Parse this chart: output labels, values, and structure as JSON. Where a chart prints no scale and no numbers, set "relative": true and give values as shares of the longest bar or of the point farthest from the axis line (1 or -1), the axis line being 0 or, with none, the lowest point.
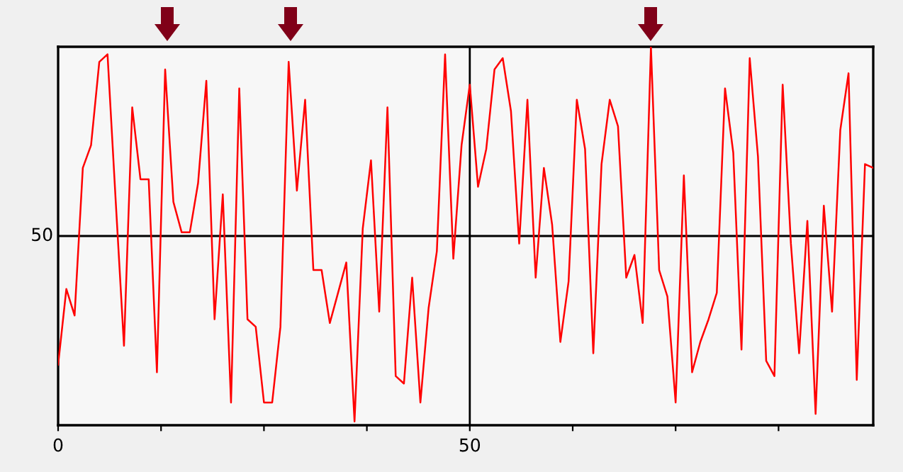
{
  "chart_data": {
    "type": "line",
    "relative": true,
    "x": [
      0,
      1,
      2,
      3,
      4,
      5,
      6,
      7,
      8,
      9,
      10,
      11,
      12,
      13,
      14,
      15,
      16,
      17,
      18,
      19,
      20,
      21,
      22,
      23,
      24,
      25,
      26,
      27,
      28,
      29,
      30,
      31,
      32,
      33,
      34,
      35,
      36,
      37,
      38,
      39,
      40,
      41,
      42,
      43,
      44,
      45,
      46,
      47,
      48,
      49,
      50,
      51,
      52,
      53,
      54,
      55,
      56,
      57,
      58,
      59,
      60,
      61,
      62,
      63,
      64,
      65,
      66,
      67,
      68,
      69,
      70,
      71,
      72,
      73,
      74,
      75,
      76,
      77,
      78,
      79,
      80,
      81,
      82,
      83,
      84,
      85,
      86,
      87,
      88,
      89,
      90,
      91,
      92,
      93,
      94,
      95,
      96,
      97,
      98,
      99
    ],
    "series": [
      {
        "color": "#ff0000",
        "values": [
          0.16,
          0.36,
          0.29,
          0.68,
          0.74,
          0.96,
          0.98,
          0.59,
          0.21,
          0.84,
          0.65,
          0.65,
          0.14,
          0.94,
          0.59,
          0.51,
          0.51,
          0.64,
          0.91,
          0.28,
          0.61,
          0.06,
          0.89,
          0.28,
          0.26,
          0.06,
          0.06,
          0.26,
          0.96,
          0.62,
          0.86,
          0.41,
          0.41,
          0.27,
          0.35,
          0.43,
          0.01,
          0.52,
          0.7,
          0.3,
          0.84,
          0.13,
          0.11,
          0.39,
          0.06,
          0.31,
          0.46,
          0.98,
          0.44,
          0.74,
          0.9,
          0.63,
          0.73,
          0.94,
          0.97,
          0.83,
          0.48,
          0.86,
          0.39,
          0.68,
          0.53,
          0.22,
          0.38,
          0.86,
          0.73,
          0.19,
          0.69,
          0.86,
          0.79,
          0.39,
          0.45,
          0.27,
          1.0,
          0.41,
          0.34,
          0.06,
          0.66,
          0.14,
          0.22,
          0.28,
          0.35,
          0.89,
          0.72,
          0.2,
          0.97,
          0.71,
          0.17,
          0.13,
          0.9,
          0.48,
          0.19,
          0.54,
          0.03,
          0.58,
          0.3,
          0.78,
          0.93,
          0.12,
          0.69,
          0.68
        ]
      }
    ],
    "xlim": [
      0,
      99
    ],
    "xticks": [
      0,
      {
        "value": 12.5,
        "label": null
      },
      {
        "value": 25,
        "label": null
      },
      {
        "value": 37.5,
        "label": null
      },
      50,
      {
        "value": 62.5,
        "label": null
      },
      {
        "value": 75,
        "label": null
      },
      {
        "value": 87.5,
        "label": null
      }
    ],
    "ref_lines": [
      {
        "axis": "y",
        "value": 0.5,
        "label": "50",
        "color": "#000000"
      },
      {
        "axis": "x",
        "value": 50,
        "color": "#000000"
      }
    ],
    "grid": false,
    "legend": false,
    "marker": "none",
    "line_style": "solid"
  }
}
